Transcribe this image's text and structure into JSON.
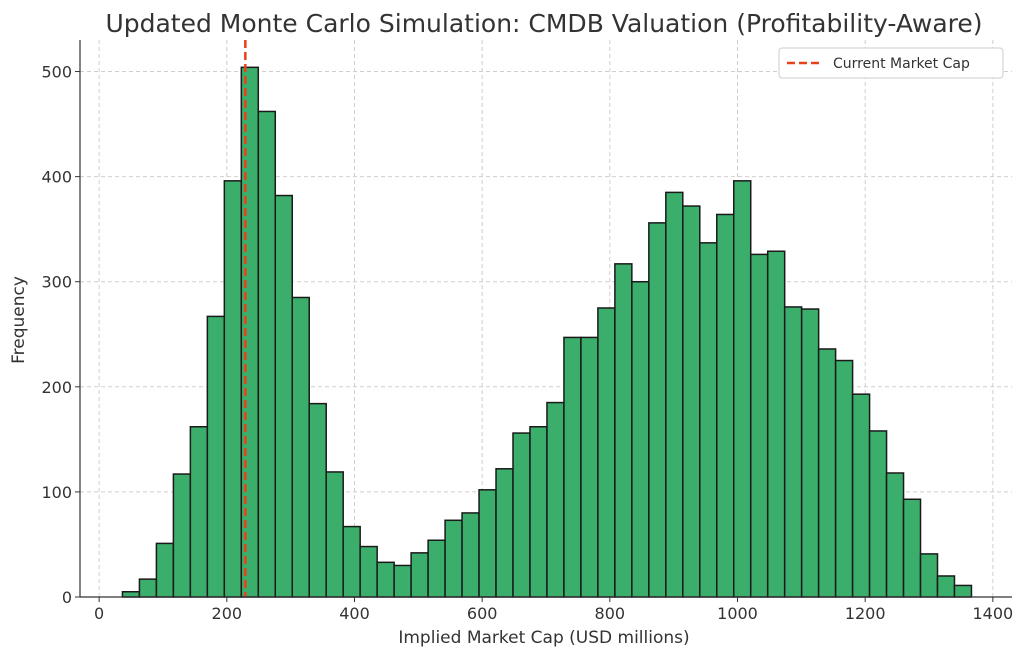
{
  "chart_data": {
    "type": "bar",
    "title": "Updated Monte Carlo Simulation: CMDB Valuation (Profitability-Aware)",
    "xlabel": "Implied Market Cap (USD millions)",
    "ylabel": "Frequency",
    "xlim": [
      -30,
      1430
    ],
    "ylim": [
      0,
      530
    ],
    "xticks": [
      0,
      200,
      400,
      600,
      800,
      1000,
      1200,
      1400
    ],
    "yticks": [
      0,
      100,
      200,
      300,
      400,
      500
    ],
    "grid": true,
    "bin_start": 36.5,
    "bin_width": 26.6,
    "values": [
      5,
      17,
      51,
      117,
      162,
      267,
      396,
      504,
      462,
      382,
      285,
      184,
      119,
      67,
      48,
      33,
      30,
      42,
      54,
      73,
      80,
      102,
      122,
      156,
      162,
      185,
      247,
      247,
      275,
      317,
      300,
      356,
      385,
      372,
      337,
      364,
      396,
      326,
      329,
      276,
      274,
      236,
      225,
      193,
      158,
      118,
      93,
      41,
      20,
      11
    ],
    "bar_color": "#3aae6a",
    "bar_edge_color": "#1a1a1a",
    "reference_line": {
      "label": "Current Market Cap",
      "x": 229,
      "color": "#e8401c",
      "style": "dashed"
    },
    "legend": {
      "position": "top-right",
      "entries": [
        "Current Market Cap"
      ]
    }
  }
}
